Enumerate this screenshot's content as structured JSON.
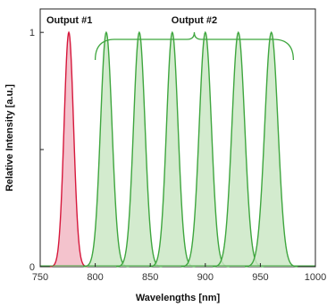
{
  "chart_data": {
    "type": "area",
    "title": "",
    "xlabel": "Wavelengths [nm]",
    "ylabel": "Relative Intensity [a.u.]",
    "xlim": [
      750,
      1000
    ],
    "ylim": [
      0,
      1.1
    ],
    "x_ticks": [
      750,
      800,
      850,
      900,
      950,
      1000
    ],
    "y_ticks": [
      0,
      0.5,
      1
    ],
    "y_tick_labels": [
      "0",
      "",
      "1"
    ],
    "grid": false,
    "legend": "none",
    "series": [
      {
        "color": "#d6183c",
        "fill": "#f2b8c4",
        "peaks": [
          {
            "center": 776,
            "height": 1.0,
            "sigma": 4.3
          }
        ]
      },
      {
        "color": "#3fa63f",
        "fill": "#cbe8c5",
        "peaks": [
          {
            "center": 810,
            "height": 1.0,
            "sigma": 5.2
          },
          {
            "center": 840,
            "height": 1.0,
            "sigma": 5.2
          },
          {
            "center": 870,
            "height": 1.0,
            "sigma": 5.2
          },
          {
            "center": 900,
            "height": 1.0,
            "sigma": 5.5
          },
          {
            "center": 930,
            "height": 1.0,
            "sigma": 5.8
          },
          {
            "center": 960,
            "height": 1.0,
            "sigma": 6.0
          }
        ]
      }
    ],
    "annotations": [
      {
        "text": "Output #1",
        "x": 776,
        "color": "#111111"
      },
      {
        "text": "Output #2",
        "x": 890,
        "span": [
          800,
          980
        ],
        "color": "#3fa63f"
      }
    ]
  }
}
